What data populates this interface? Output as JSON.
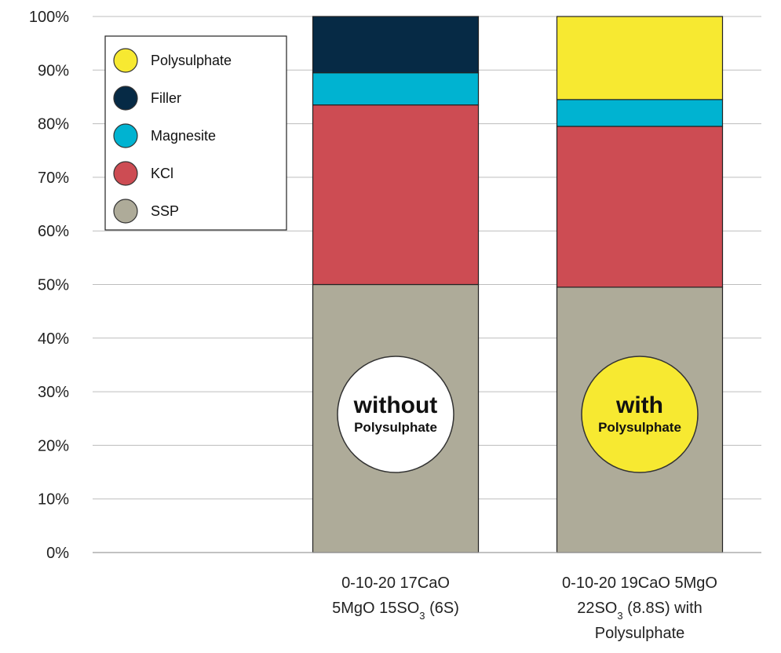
{
  "chart_data": {
    "type": "bar",
    "stacked": true,
    "percent_axis": true,
    "ylim": [
      0,
      100
    ],
    "y_ticks": [
      "0%",
      "10%",
      "20%",
      "30%",
      "40%",
      "50%",
      "60%",
      "70%",
      "80%",
      "90%",
      "100%"
    ],
    "grid": true,
    "legend_position": "top-left",
    "categories": [
      [
        "0-10-20 17CaO",
        "5MgO 15SO",
        "3",
        " (6S)"
      ],
      [
        "0-10-20 19CaO 5MgO",
        "22SO",
        "3",
        " (8.8S) with",
        "Polysulphate"
      ]
    ],
    "series": [
      {
        "name": "SSP",
        "color": "#aeab99",
        "values": [
          50,
          49.5
        ]
      },
      {
        "name": "KCl",
        "color": "#cd4c53",
        "values": [
          33.5,
          30
        ]
      },
      {
        "name": "Magnesite",
        "color": "#00b3d1",
        "values": [
          6,
          5
        ]
      },
      {
        "name": "Filler",
        "color": "#062a45",
        "values": [
          10.5,
          0
        ]
      },
      {
        "name": "Polysulphate",
        "color": "#f7e931",
        "values": [
          0,
          15.5
        ]
      }
    ],
    "legend_order": [
      "Polysulphate",
      "Filler",
      "Magnesite",
      "KCl",
      "SSP"
    ],
    "badges": [
      {
        "big": "without",
        "small": "Polysulphate",
        "fill": "#ffffff"
      },
      {
        "big": "with",
        "small": "Polysulphate",
        "fill": "#f7e931"
      }
    ]
  }
}
